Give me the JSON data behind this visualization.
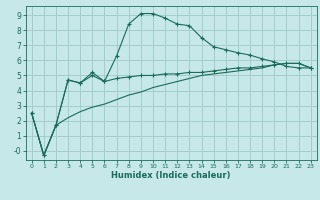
{
  "xlabel": "Humidex (Indice chaleur)",
  "bg_color": "#c6e8e8",
  "grid_color": "#a0c8c8",
  "line_color": "#1a6b5a",
  "x_ticks": [
    0,
    1,
    2,
    3,
    4,
    5,
    6,
    7,
    8,
    9,
    10,
    11,
    12,
    13,
    14,
    15,
    16,
    17,
    18,
    19,
    20,
    21,
    22,
    23
  ],
  "y_ticks": [
    0,
    1,
    2,
    3,
    4,
    5,
    6,
    7,
    8,
    9
  ],
  "y_tick_labels": [
    "-0",
    "1",
    "2",
    "3",
    "4",
    "5",
    "6",
    "7",
    "8",
    "9"
  ],
  "ylim": [
    -0.6,
    9.6
  ],
  "xlim": [
    -0.5,
    23.5
  ],
  "series1_x": [
    0,
    1,
    2,
    3,
    4,
    5,
    6,
    7,
    8,
    9,
    10,
    11,
    12,
    13,
    14,
    15,
    16,
    17,
    18,
    19,
    20,
    21,
    22,
    23
  ],
  "series1_y": [
    2.5,
    -0.3,
    1.7,
    4.7,
    4.5,
    5.2,
    4.6,
    6.3,
    8.4,
    9.1,
    9.1,
    8.8,
    8.4,
    8.3,
    7.5,
    6.9,
    6.7,
    6.5,
    6.35,
    6.1,
    5.9,
    5.6,
    5.5,
    5.5
  ],
  "series2_x": [
    0,
    1,
    2,
    3,
    4,
    5,
    6,
    7,
    8,
    9,
    10,
    11,
    12,
    13,
    14,
    15,
    16,
    17,
    18,
    19,
    20,
    21,
    22,
    23
  ],
  "series2_y": [
    2.5,
    -0.3,
    1.7,
    4.7,
    4.5,
    5.0,
    4.6,
    4.8,
    4.9,
    5.0,
    5.0,
    5.1,
    5.1,
    5.2,
    5.2,
    5.3,
    5.4,
    5.5,
    5.5,
    5.6,
    5.7,
    5.8,
    5.8,
    5.5
  ],
  "series3_x": [
    0,
    1,
    2,
    3,
    4,
    5,
    6,
    7,
    8,
    9,
    10,
    11,
    12,
    13,
    14,
    15,
    16,
    17,
    18,
    19,
    20,
    21,
    22,
    23
  ],
  "series3_y": [
    2.5,
    -0.3,
    1.7,
    2.2,
    2.6,
    2.9,
    3.1,
    3.4,
    3.7,
    3.9,
    4.2,
    4.4,
    4.6,
    4.8,
    5.0,
    5.1,
    5.2,
    5.3,
    5.4,
    5.5,
    5.7,
    5.8,
    5.8,
    5.5
  ]
}
